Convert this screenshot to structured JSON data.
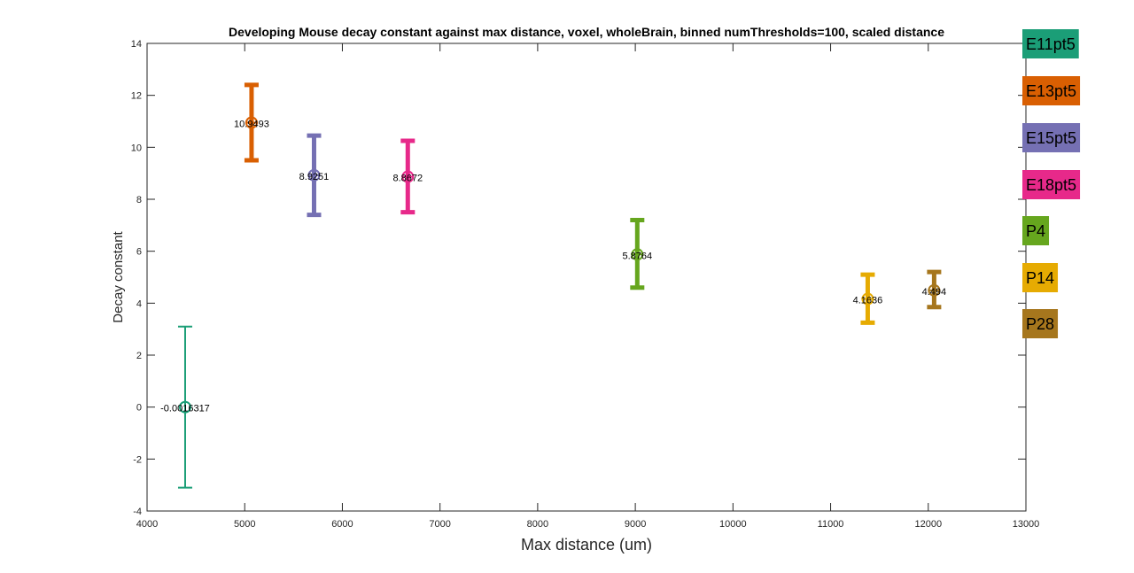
{
  "chart_data": {
    "type": "scatter",
    "title": "Developing Mouse decay constant against max distance, voxel, wholeBrain, binned numThresholds=100, scaled distance",
    "xlabel": "Max distance (um)",
    "ylabel": "Decay constant",
    "xlim": [
      4000,
      13000
    ],
    "ylim": [
      -4,
      14
    ],
    "xticks": [
      4000,
      5000,
      6000,
      7000,
      8000,
      9000,
      10000,
      11000,
      12000,
      13000
    ],
    "yticks": [
      -4,
      -2,
      0,
      2,
      4,
      6,
      8,
      10,
      12,
      14
    ],
    "grid": false,
    "legend_position": "outside-right",
    "series": [
      {
        "name": "E11pt5",
        "color": "#1b9e77",
        "x": 4390,
        "y": -0.0016317,
        "err_low": -3.1,
        "err_high": 3.1,
        "label": "-0.0016317",
        "errbar_width": 2
      },
      {
        "name": "E13pt5",
        "color": "#d95f02",
        "x": 5070,
        "y": 10.9493,
        "err_low": 9.5,
        "err_high": 12.4,
        "label": "10.9493",
        "errbar_width": 5
      },
      {
        "name": "E15pt5",
        "color": "#7570b3",
        "x": 5710,
        "y": 8.9251,
        "err_low": 7.4,
        "err_high": 10.45,
        "label": "8.9251",
        "errbar_width": 5
      },
      {
        "name": "E18pt5",
        "color": "#e7298a",
        "x": 6670,
        "y": 8.8672,
        "err_low": 7.5,
        "err_high": 10.25,
        "label": "8.8672",
        "errbar_width": 5
      },
      {
        "name": "P4",
        "color": "#66a61e",
        "x": 9020,
        "y": 5.8764,
        "err_low": 4.6,
        "err_high": 7.2,
        "label": "5.8764",
        "errbar_width": 5
      },
      {
        "name": "P14",
        "color": "#e6ab02",
        "x": 11380,
        "y": 4.1636,
        "err_low": 3.25,
        "err_high": 5.1,
        "label": "4.1636",
        "errbar_width": 5
      },
      {
        "name": "P28",
        "color": "#a6761d",
        "x": 12060,
        "y": 4.494,
        "err_low": 3.85,
        "err_high": 5.2,
        "label": "4.494",
        "errbar_width": 5
      }
    ]
  }
}
